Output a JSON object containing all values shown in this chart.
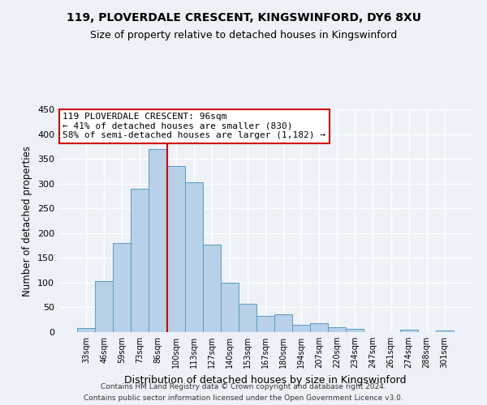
{
  "title": "119, PLOVERDALE CRESCENT, KINGSWINFORD, DY6 8XU",
  "subtitle": "Size of property relative to detached houses in Kingswinford",
  "xlabel": "Distribution of detached houses by size in Kingswinford",
  "ylabel": "Number of detached properties",
  "bar_labels": [
    "33sqm",
    "46sqm",
    "59sqm",
    "73sqm",
    "86sqm",
    "100sqm",
    "113sqm",
    "127sqm",
    "140sqm",
    "153sqm",
    "167sqm",
    "180sqm",
    "194sqm",
    "207sqm",
    "220sqm",
    "234sqm",
    "247sqm",
    "261sqm",
    "274sqm",
    "288sqm",
    "301sqm"
  ],
  "bar_values": [
    9,
    103,
    180,
    290,
    370,
    335,
    303,
    176,
    100,
    58,
    33,
    36,
    15,
    18,
    10,
    6,
    0,
    0,
    5,
    0,
    4
  ],
  "bar_color": "#b8d0e8",
  "bar_edge_color": "#5a9bc2",
  "vline_color": "#cc0000",
  "ylim": [
    0,
    450
  ],
  "yticks": [
    0,
    50,
    100,
    150,
    200,
    250,
    300,
    350,
    400,
    450
  ],
  "annotation_title": "119 PLOVERDALE CRESCENT: 96sqm",
  "annotation_line1": "← 41% of detached houses are smaller (830)",
  "annotation_line2": "58% of semi-detached houses are larger (1,182) →",
  "annotation_box_color": "#ffffff",
  "annotation_box_edge": "#cc0000",
  "footer1": "Contains HM Land Registry data © Crown copyright and database right 2024.",
  "footer2": "Contains public sector information licensed under the Open Government Licence v3.0.",
  "background_color": "#eef2f8",
  "grid_color": "#ffffff",
  "title_fontsize": 10,
  "subtitle_fontsize": 9
}
